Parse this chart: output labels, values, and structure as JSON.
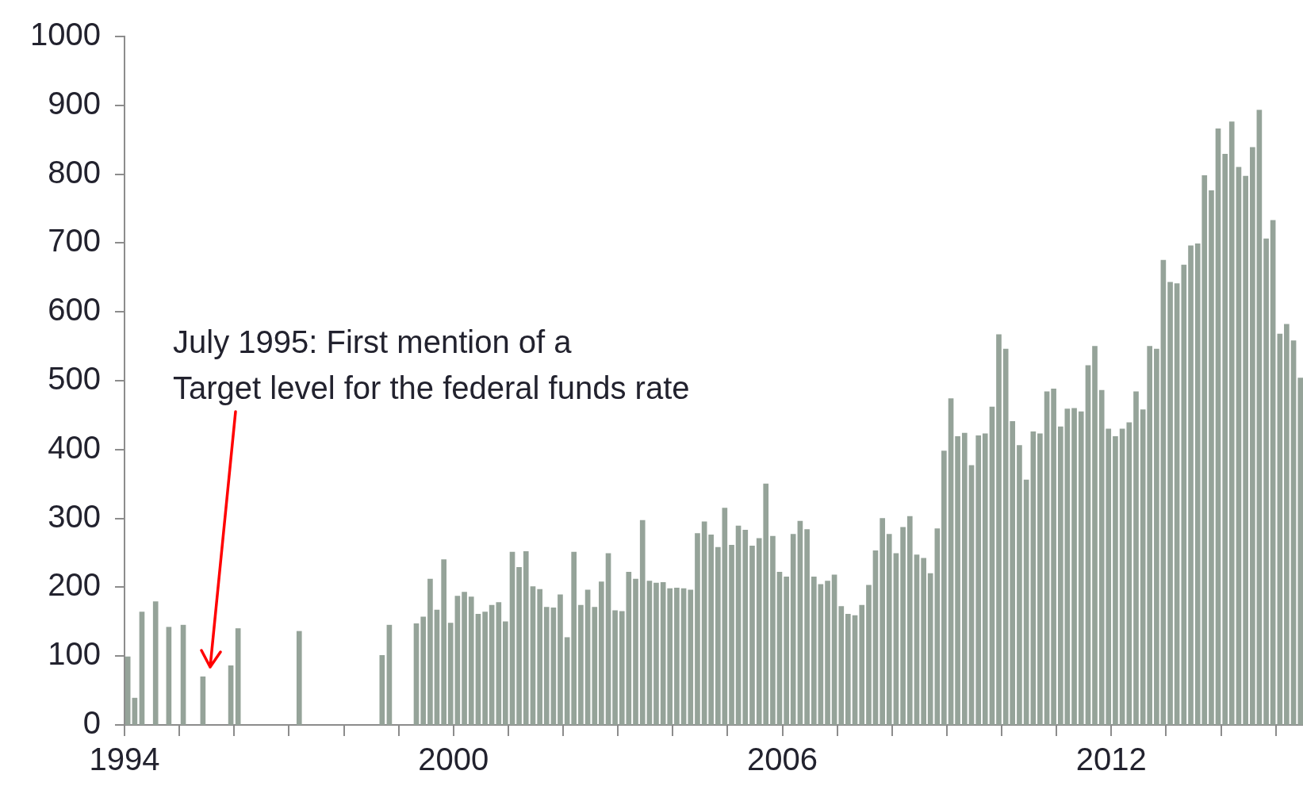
{
  "chart_data": {
    "type": "bar",
    "color": "#95a399",
    "x": [
      "1994-01-23",
      "1994-03-10",
      "1994-04-27",
      "1994-07-27",
      "1994-10-23",
      "1995-01-27",
      "1995-06-07",
      "1995-12-10",
      "1996-01-27",
      "1997-03-10",
      "1998-09-13",
      "1998-10-31",
      "1999-04-29",
      "1999-06-14",
      "1999-07-30",
      "1999-09-13",
      "1999-10-29",
      "1999-12-13",
      "2000-01-28",
      "2000-03-14",
      "2000-04-29",
      "2000-06-14",
      "2000-07-30",
      "2000-09-13",
      "2000-10-29",
      "2000-12-13",
      "2001-01-28",
      "2001-03-14",
      "2001-04-29",
      "2001-06-14",
      "2001-07-30",
      "2001-09-13",
      "2001-10-29",
      "2001-12-13",
      "2002-01-28",
      "2002-03-14",
      "2002-04-29",
      "2002-06-14",
      "2002-07-30",
      "2002-09-13",
      "2002-10-29",
      "2002-12-13",
      "2003-01-28",
      "2003-03-14",
      "2003-04-29",
      "2003-06-14",
      "2003-07-30",
      "2003-09-13",
      "2003-10-29",
      "2003-12-13",
      "2004-01-28",
      "2004-03-14",
      "2004-04-29",
      "2004-06-14",
      "2004-07-30",
      "2004-09-13",
      "2004-10-29",
      "2004-12-13",
      "2005-01-28",
      "2005-03-14",
      "2005-04-29",
      "2005-06-14",
      "2005-07-30",
      "2005-09-13",
      "2005-10-29",
      "2005-12-13",
      "2006-01-28",
      "2006-03-14",
      "2006-04-29",
      "2006-06-14",
      "2006-07-30",
      "2006-09-13",
      "2006-10-29",
      "2006-12-13",
      "2007-01-28",
      "2007-03-14",
      "2007-04-29",
      "2007-06-14",
      "2007-07-30",
      "2007-09-13",
      "2007-10-29",
      "2007-12-13",
      "2008-01-28",
      "2008-03-14",
      "2008-04-29",
      "2008-06-14",
      "2008-07-30",
      "2008-09-13",
      "2008-10-29",
      "2008-12-13",
      "2009-01-28",
      "2009-03-14",
      "2009-04-29",
      "2009-06-14",
      "2009-07-30",
      "2009-09-13",
      "2009-10-29",
      "2009-12-13",
      "2010-01-28",
      "2010-03-14",
      "2010-04-29",
      "2010-06-14",
      "2010-07-30",
      "2010-09-13",
      "2010-10-29",
      "2010-12-13",
      "2011-01-28",
      "2011-03-14",
      "2011-04-29",
      "2011-06-14",
      "2011-07-30",
      "2011-09-13",
      "2011-10-29",
      "2011-12-13",
      "2012-01-28",
      "2012-03-14",
      "2012-04-29",
      "2012-06-14",
      "2012-07-30",
      "2012-09-13",
      "2012-10-29",
      "2012-12-13",
      "2013-01-28",
      "2013-03-14",
      "2013-04-29",
      "2013-06-14",
      "2013-07-30",
      "2013-09-13",
      "2013-10-29",
      "2013-12-13",
      "2014-01-28",
      "2014-03-14",
      "2014-04-29",
      "2014-06-14",
      "2014-07-30",
      "2014-09-13",
      "2014-10-29",
      "2014-12-13",
      "2015-01-28",
      "2015-03-14",
      "2015-04-29",
      "2015-06-14"
    ],
    "values": [
      99,
      39,
      164,
      179,
      142,
      145,
      70,
      86,
      140,
      136,
      101,
      145,
      147,
      157,
      212,
      167,
      240,
      148,
      187,
      193,
      186,
      161,
      164,
      174,
      178,
      150,
      251,
      229,
      252,
      201,
      197,
      171,
      170,
      189,
      127,
      251,
      174,
      196,
      171,
      208,
      249,
      166,
      165,
      222,
      212,
      297,
      209,
      206,
      207,
      198,
      199,
      198,
      196,
      278,
      295,
      276,
      258,
      315,
      261,
      289,
      283,
      260,
      271,
      350,
      274,
      222,
      215,
      277,
      296,
      284,
      215,
      204,
      209,
      218,
      172,
      161,
      159,
      174,
      203,
      253,
      300,
      277,
      249,
      287,
      303,
      247,
      242,
      220,
      285,
      398,
      474,
      419,
      424,
      377,
      420,
      423,
      462,
      567,
      546,
      441,
      406,
      356,
      426,
      423,
      484,
      488,
      433,
      459,
      460,
      455,
      522,
      550,
      486,
      430,
      419,
      430,
      439,
      484,
      458,
      550,
      546,
      675,
      643,
      641,
      668,
      696,
      699,
      798,
      776,
      866,
      829,
      876,
      810,
      797,
      839,
      893,
      706,
      733,
      568,
      582,
      558,
      504
    ],
    "xlim": [
      "1994-01-01",
      "2015-07-01"
    ],
    "xticks": [
      "1994",
      {
        "value": "1995",
        "label": null
      },
      {
        "value": "1996",
        "label": null
      },
      {
        "value": "1997",
        "label": null
      },
      {
        "value": "1998",
        "label": null
      },
      {
        "value": "1999",
        "label": null
      },
      "2000",
      {
        "value": "2001",
        "label": null
      },
      {
        "value": "2002",
        "label": null
      },
      {
        "value": "2003",
        "label": null
      },
      {
        "value": "2004",
        "label": null
      },
      {
        "value": "2005",
        "label": null
      },
      "2006",
      {
        "value": "2007",
        "label": null
      },
      {
        "value": "2008",
        "label": null
      },
      {
        "value": "2009",
        "label": null
      },
      {
        "value": "2010",
        "label": null
      },
      {
        "value": "2011",
        "label": null
      },
      "2012",
      {
        "value": "2013",
        "label": null
      },
      {
        "value": "2014",
        "label": null
      },
      {
        "value": "2015",
        "label": null
      }
    ],
    "ylim": [
      0,
      1000
    ],
    "yticks": [
      0,
      100,
      200,
      300,
      400,
      500,
      600,
      700,
      800,
      900,
      1000
    ],
    "annotations": [
      "July 1995: First mention of a\nTarget level for the federal funds rate"
    ]
  }
}
